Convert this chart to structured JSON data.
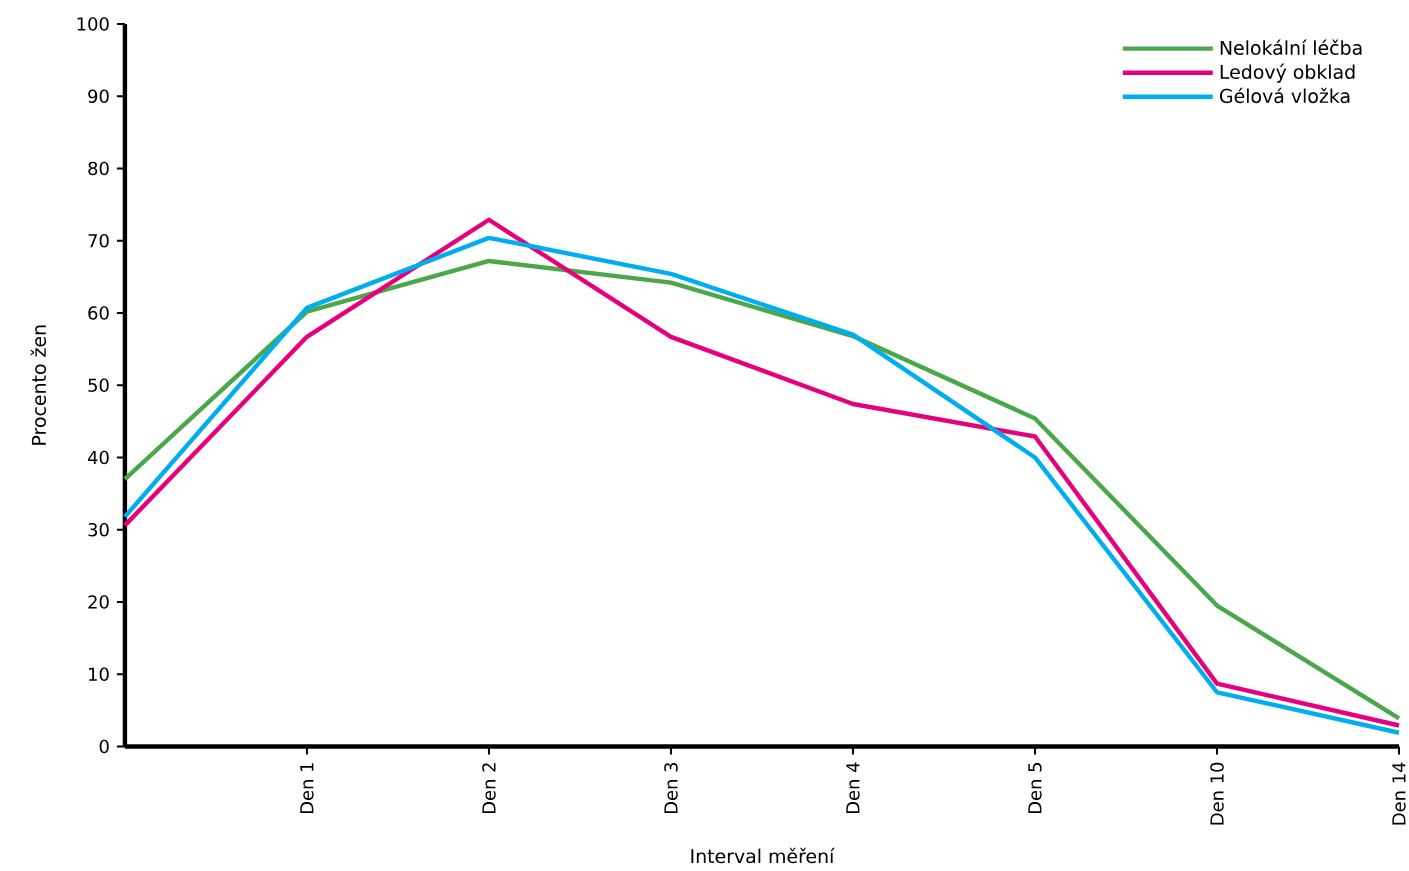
{
  "chart_data": {
    "type": "line",
    "xlabel": "Interval měření",
    "ylabel": "Procento žen",
    "categories": [
      null,
      "Den 1",
      "Den 2",
      "Den 3",
      "Den 4",
      "Den 5",
      "Den 10",
      "Den 14"
    ],
    "series": [
      {
        "name": "Nelokální léčba",
        "color": "#4aa74a",
        "values": [
          37,
          60.2,
          67.2,
          64.2,
          56.8,
          45.4,
          19.5,
          3.9
        ]
      },
      {
        "name": "Ledový obklad",
        "color": "#e6007e",
        "values": [
          30.6,
          56.7,
          72.9,
          56.7,
          47.4,
          42.9,
          8.7,
          2.9
        ]
      },
      {
        "name": "Gélová vložka",
        "color": "#00aeef",
        "values": [
          31.8,
          60.7,
          70.4,
          65.4,
          57.0,
          40.0,
          7.5,
          1.9
        ]
      }
    ],
    "ylim": [
      0,
      100
    ],
    "yticks": [
      0,
      10,
      20,
      30,
      40,
      50,
      60,
      70,
      80,
      90,
      100
    ],
    "legend": "top right",
    "grid": false,
    "marker": "none",
    "line_style": "solid"
  }
}
